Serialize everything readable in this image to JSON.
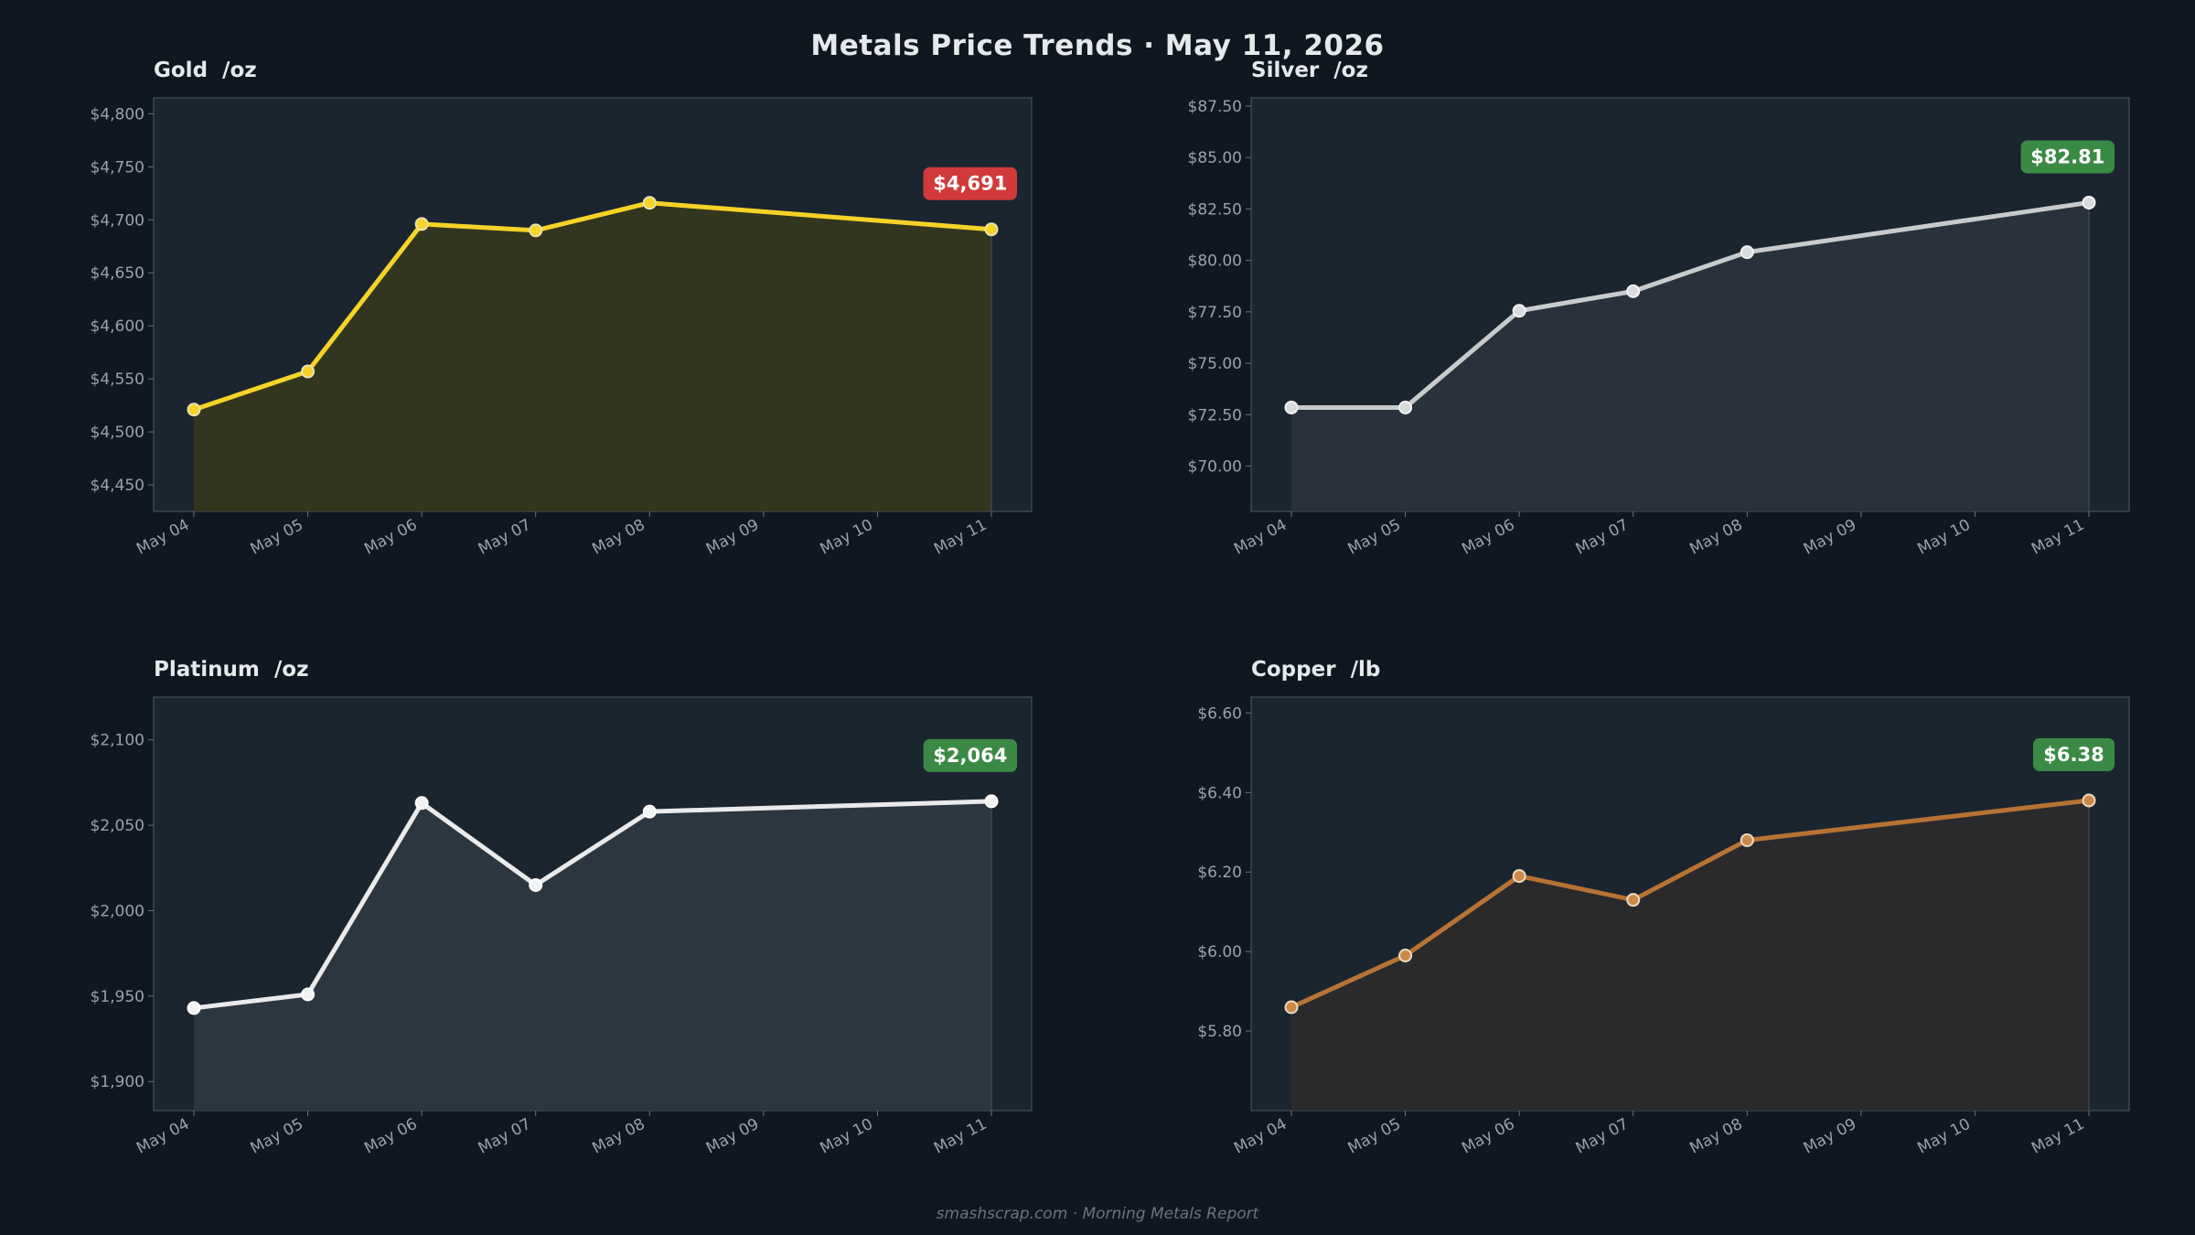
{
  "title": "Metals Price Trends  ·  May 11, 2026",
  "footer": "smashscrap.com  ·  Morning Metals Report",
  "chart_data": [
    {
      "type": "area",
      "title": "Gold  /oz",
      "categories": [
        "May 04",
        "May 05",
        "May 06",
        "May 07",
        "May 08",
        "May 09",
        "May 10",
        "May 11"
      ],
      "points": [
        {
          "x": "May 04",
          "y": 4521
        },
        {
          "x": "May 05",
          "y": 4557
        },
        {
          "x": "May 06",
          "y": 4696
        },
        {
          "x": "May 07",
          "y": 4690
        },
        {
          "x": "May 08",
          "y": 4716
        },
        {
          "x": "May 11",
          "y": 4691
        }
      ],
      "ylim": [
        4425,
        4815
      ],
      "yticks": [
        4450,
        4500,
        4550,
        4600,
        4650,
        4700,
        4750,
        4800
      ],
      "ytick_labels": [
        "$4,450",
        "$4,500",
        "$4,550",
        "$4,600",
        "$4,650",
        "$4,700",
        "$4,750",
        "$4,800"
      ],
      "badge": "$4,691",
      "badge_color": "#d03a3a",
      "line_color": "#f5d327",
      "fill_color": "#33361f",
      "marker_fill": "#f5d327",
      "marker_stroke": "#e9e1b0"
    },
    {
      "type": "area",
      "title": "Silver  /oz",
      "categories": [
        "May 04",
        "May 05",
        "May 06",
        "May 07",
        "May 08",
        "May 09",
        "May 10",
        "May 11"
      ],
      "points": [
        {
          "x": "May 04",
          "y": 72.85
        },
        {
          "x": "May 05",
          "y": 72.85
        },
        {
          "x": "May 06",
          "y": 77.55
        },
        {
          "x": "May 07",
          "y": 78.5
        },
        {
          "x": "May 08",
          "y": 80.4
        },
        {
          "x": "May 11",
          "y": 82.81
        }
      ],
      "ylim": [
        67.8,
        87.9
      ],
      "yticks": [
        70,
        72.5,
        75,
        77.5,
        80,
        82.5,
        85,
        87.5
      ],
      "ytick_labels": [
        "$70.00",
        "$72.50",
        "$75.00",
        "$77.50",
        "$80.00",
        "$82.50",
        "$85.00",
        "$87.50"
      ],
      "badge": "$82.81",
      "badge_color": "#3a8a45",
      "line_color": "#c8cbce",
      "fill_color": "#29323c",
      "marker_fill": "#d8dbde",
      "marker_stroke": "#f2f3f4"
    },
    {
      "type": "area",
      "title": "Platinum  /oz",
      "categories": [
        "May 04",
        "May 05",
        "May 06",
        "May 07",
        "May 08",
        "May 09",
        "May 10",
        "May 11"
      ],
      "points": [
        {
          "x": "May 04",
          "y": 1943
        },
        {
          "x": "May 05",
          "y": 1951
        },
        {
          "x": "May 06",
          "y": 2063
        },
        {
          "x": "May 07",
          "y": 2015
        },
        {
          "x": "May 08",
          "y": 2058
        },
        {
          "x": "May 11",
          "y": 2064
        }
      ],
      "ylim": [
        1883,
        2125
      ],
      "yticks": [
        1900,
        1950,
        2000,
        2050,
        2100
      ],
      "ytick_labels": [
        "$1,900",
        "$1,950",
        "$2,000",
        "$2,050",
        "$2,100"
      ],
      "badge": "$2,064",
      "badge_color": "#3a8a45",
      "line_color": "#e8eaec",
      "fill_color": "#2c3640",
      "marker_fill": "#f2f3f4",
      "marker_stroke": "#ffffff"
    },
    {
      "type": "area",
      "title": "Copper  /lb",
      "categories": [
        "May 04",
        "May 05",
        "May 06",
        "May 07",
        "May 08",
        "May 09",
        "May 10",
        "May 11"
      ],
      "points": [
        {
          "x": "May 04",
          "y": 5.86
        },
        {
          "x": "May 05",
          "y": 5.99
        },
        {
          "x": "May 06",
          "y": 6.19
        },
        {
          "x": "May 07",
          "y": 6.13
        },
        {
          "x": "May 08",
          "y": 6.28
        },
        {
          "x": "May 11",
          "y": 6.38
        }
      ],
      "ylim": [
        5.6,
        6.64
      ],
      "yticks": [
        5.8,
        6.0,
        6.2,
        6.4,
        6.6
      ],
      "ytick_labels": [
        "$5.80",
        "$6.00",
        "$6.20",
        "$6.40",
        "$6.60"
      ],
      "badge": "$6.38",
      "badge_color": "#3a8a45",
      "line_color": "#b87333",
      "fill_color": "#2a2a2d",
      "marker_fill": "#c98a4a",
      "marker_stroke": "#f0d9bf"
    }
  ]
}
